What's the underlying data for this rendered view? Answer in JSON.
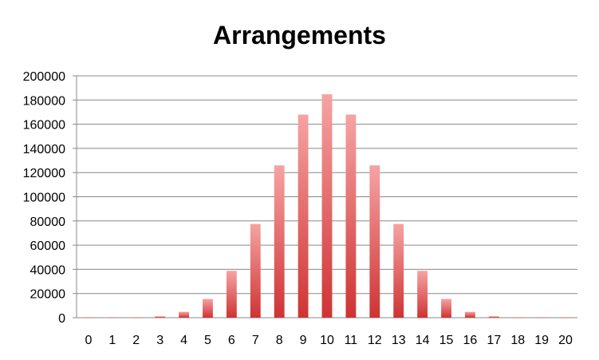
{
  "chart_data": {
    "type": "bar",
    "title": "Arrangements",
    "xlabel": "",
    "ylabel": "",
    "categories": [
      "0",
      "1",
      "2",
      "3",
      "4",
      "5",
      "6",
      "7",
      "8",
      "9",
      "10",
      "11",
      "12",
      "13",
      "14",
      "15",
      "16",
      "17",
      "18",
      "19",
      "20"
    ],
    "values": [
      1,
      20,
      190,
      1140,
      4845,
      15504,
      38760,
      77520,
      125970,
      167960,
      184756,
      167960,
      125970,
      77520,
      38760,
      15504,
      4845,
      1140,
      190,
      20,
      1
    ],
    "ylim": [
      0,
      200000
    ],
    "yticks": [
      "0",
      "20000",
      "40000",
      "60000",
      "80000",
      "100000",
      "120000",
      "140000",
      "160000",
      "180000",
      "200000"
    ],
    "grid": true,
    "legend": "none",
    "colors": {
      "bar_top": "#f6a3a3",
      "bar_bottom": "#cf3333",
      "grid": "#888888",
      "axis": "#888888"
    }
  }
}
